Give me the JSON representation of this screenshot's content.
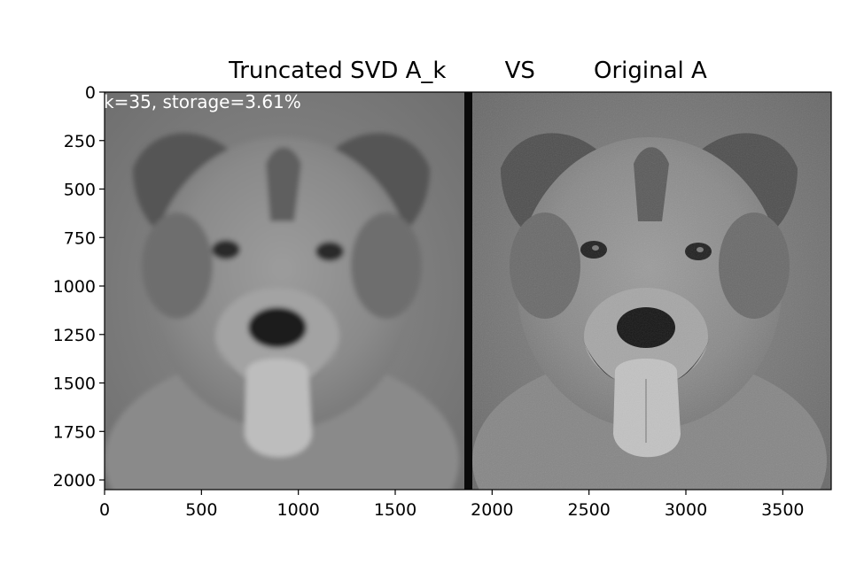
{
  "title": "Truncated SVD A_k        VS        Original A",
  "annotation": "k=35, storage=3.61%",
  "left_panel": "Truncated SVD A_k",
  "right_panel": "Original A",
  "colors": {
    "background": "#ffffff",
    "axis": "#000000",
    "divider": "#0a0a0a",
    "annotation": "#ffffff"
  },
  "chart_data": {
    "type": "image",
    "xlim": [
      0,
      3750
    ],
    "ylim": [
      2050,
      0
    ],
    "x_ticks": [
      0,
      500,
      1000,
      1500,
      2000,
      2500,
      3000,
      3500
    ],
    "y_ticks": [
      0,
      250,
      500,
      750,
      1000,
      1250,
      1500,
      1750,
      2000
    ],
    "divider_x": [
      1850,
      1890
    ]
  }
}
